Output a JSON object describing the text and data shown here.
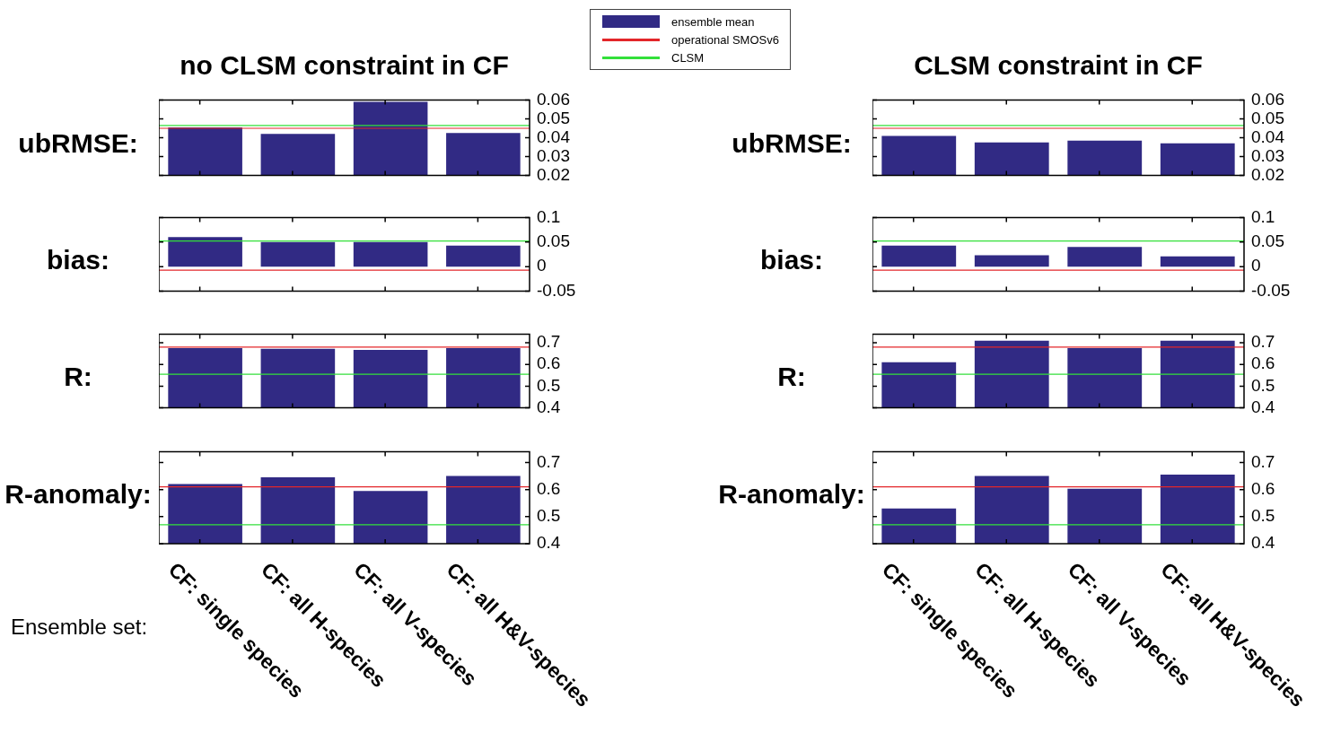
{
  "chart_data": [
    {
      "type": "bar",
      "title": "no CLSM constraint in CF",
      "ylabel": "ubRMSE:",
      "categories": [
        null,
        null,
        null,
        null
      ],
      "series": [
        {
          "name": "ensemble mean",
          "color": "#312a84",
          "values": [
            0.0455,
            0.042,
            0.059,
            0.0425
          ]
        }
      ],
      "ref_lines": [
        {
          "axis": "y",
          "value": 0.045,
          "label": "operational SMOSv6",
          "color": "#e3262a"
        },
        {
          "axis": "y",
          "value": 0.0465,
          "label": "CLSM",
          "color": "#33e03a"
        }
      ],
      "ylim": [
        0.02,
        0.06
      ],
      "yticks": [
        0.02,
        0.03,
        0.04,
        0.05,
        0.06
      ],
      "legend": "top right",
      "tick_labels": "y"
    },
    {
      "type": "bar",
      "title": "CLSM constraint in CF",
      "ylabel": "ubRMSE:",
      "categories": [
        null,
        null,
        null,
        null
      ],
      "series": [
        {
          "color": "#312a84",
          "values": [
            0.041,
            0.0375,
            0.0385,
            0.037
          ]
        }
      ],
      "ref_lines": [
        {
          "axis": "y",
          "value": 0.045,
          "color": "#e3262a"
        },
        {
          "axis": "y",
          "value": 0.0465,
          "color": "#33e03a"
        }
      ],
      "ylim": [
        0.02,
        0.06
      ],
      "yticks": [
        0.02,
        0.03,
        0.04,
        0.05,
        0.06
      ],
      "tick_labels": "y"
    },
    {
      "type": "bar",
      "ylabel": "bias:",
      "categories": [
        null,
        null,
        null,
        null
      ],
      "series": [
        {
          "color": "#312a84",
          "values": [
            0.06,
            0.05,
            0.05,
            0.043
          ]
        }
      ],
      "ref_lines": [
        {
          "axis": "y",
          "value": -0.007,
          "color": "#e3262a"
        },
        {
          "axis": "y",
          "value": 0.052,
          "color": "#33e03a"
        }
      ],
      "ylim": [
        -0.05,
        0.1
      ],
      "yticks": [
        -0.05,
        0,
        0.05,
        0.1
      ],
      "tick_labels": "y"
    },
    {
      "type": "bar",
      "ylabel": "bias:",
      "categories": [
        null,
        null,
        null,
        null
      ],
      "series": [
        {
          "color": "#312a84",
          "values": [
            0.043,
            0.023,
            0.04,
            0.021
          ]
        }
      ],
      "ref_lines": [
        {
          "axis": "y",
          "value": -0.007,
          "color": "#e3262a"
        },
        {
          "axis": "y",
          "value": 0.052,
          "color": "#33e03a"
        }
      ],
      "ylim": [
        -0.05,
        0.1
      ],
      "yticks": [
        -0.05,
        0,
        0.05,
        0.1
      ],
      "tick_labels": "y"
    },
    {
      "type": "bar",
      "ylabel": "R:",
      "categories": [
        null,
        null,
        null,
        null
      ],
      "series": [
        {
          "color": "#312a84",
          "values": [
            0.675,
            0.672,
            0.667,
            0.675
          ]
        }
      ],
      "ref_lines": [
        {
          "axis": "y",
          "value": 0.68,
          "color": "#e3262a"
        },
        {
          "axis": "y",
          "value": 0.555,
          "color": "#33e03a"
        }
      ],
      "ylim": [
        0.4,
        0.74
      ],
      "yticks": [
        0.4,
        0.5,
        0.6,
        0.7
      ],
      "tick_labels": "y"
    },
    {
      "type": "bar",
      "ylabel": "R:",
      "categories": [
        null,
        null,
        null,
        null
      ],
      "series": [
        {
          "color": "#312a84",
          "values": [
            0.61,
            0.71,
            0.675,
            0.71
          ]
        }
      ],
      "ref_lines": [
        {
          "axis": "y",
          "value": 0.68,
          "color": "#e3262a"
        },
        {
          "axis": "y",
          "value": 0.555,
          "color": "#33e03a"
        }
      ],
      "ylim": [
        0.4,
        0.74
      ],
      "yticks": [
        0.4,
        0.5,
        0.6,
        0.7
      ],
      "tick_labels": "y"
    },
    {
      "type": "bar",
      "ylabel": "R-anomaly:",
      "annotations": [
        "Ensemble set:"
      ],
      "categories": [
        "CF: single species",
        "CF: all H-species",
        "CF: all V-species",
        "CF: all H&V-species"
      ],
      "series": [
        {
          "color": "#312a84",
          "values": [
            0.62,
            0.645,
            0.595,
            0.65
          ]
        }
      ],
      "ref_lines": [
        {
          "axis": "y",
          "value": 0.61,
          "color": "#e3262a"
        },
        {
          "axis": "y",
          "value": 0.47,
          "color": "#33e03a"
        }
      ],
      "ylim": [
        0.4,
        0.74
      ],
      "yticks": [
        0.4,
        0.5,
        0.6,
        0.7
      ]
    },
    {
      "type": "bar",
      "ylabel": "R-anomaly:",
      "categories": [
        "CF: single species",
        "CF: all H-species",
        "CF: all V-species",
        "CF: all H&V-species"
      ],
      "series": [
        {
          "color": "#312a84",
          "values": [
            0.53,
            0.65,
            0.603,
            0.655
          ]
        }
      ],
      "ref_lines": [
        {
          "axis": "y",
          "value": 0.61,
          "color": "#e3262a"
        },
        {
          "axis": "y",
          "value": 0.47,
          "color": "#33e03a"
        }
      ],
      "ylim": [
        0.4,
        0.74
      ],
      "yticks": [
        0.4,
        0.5,
        0.6,
        0.7
      ]
    }
  ]
}
